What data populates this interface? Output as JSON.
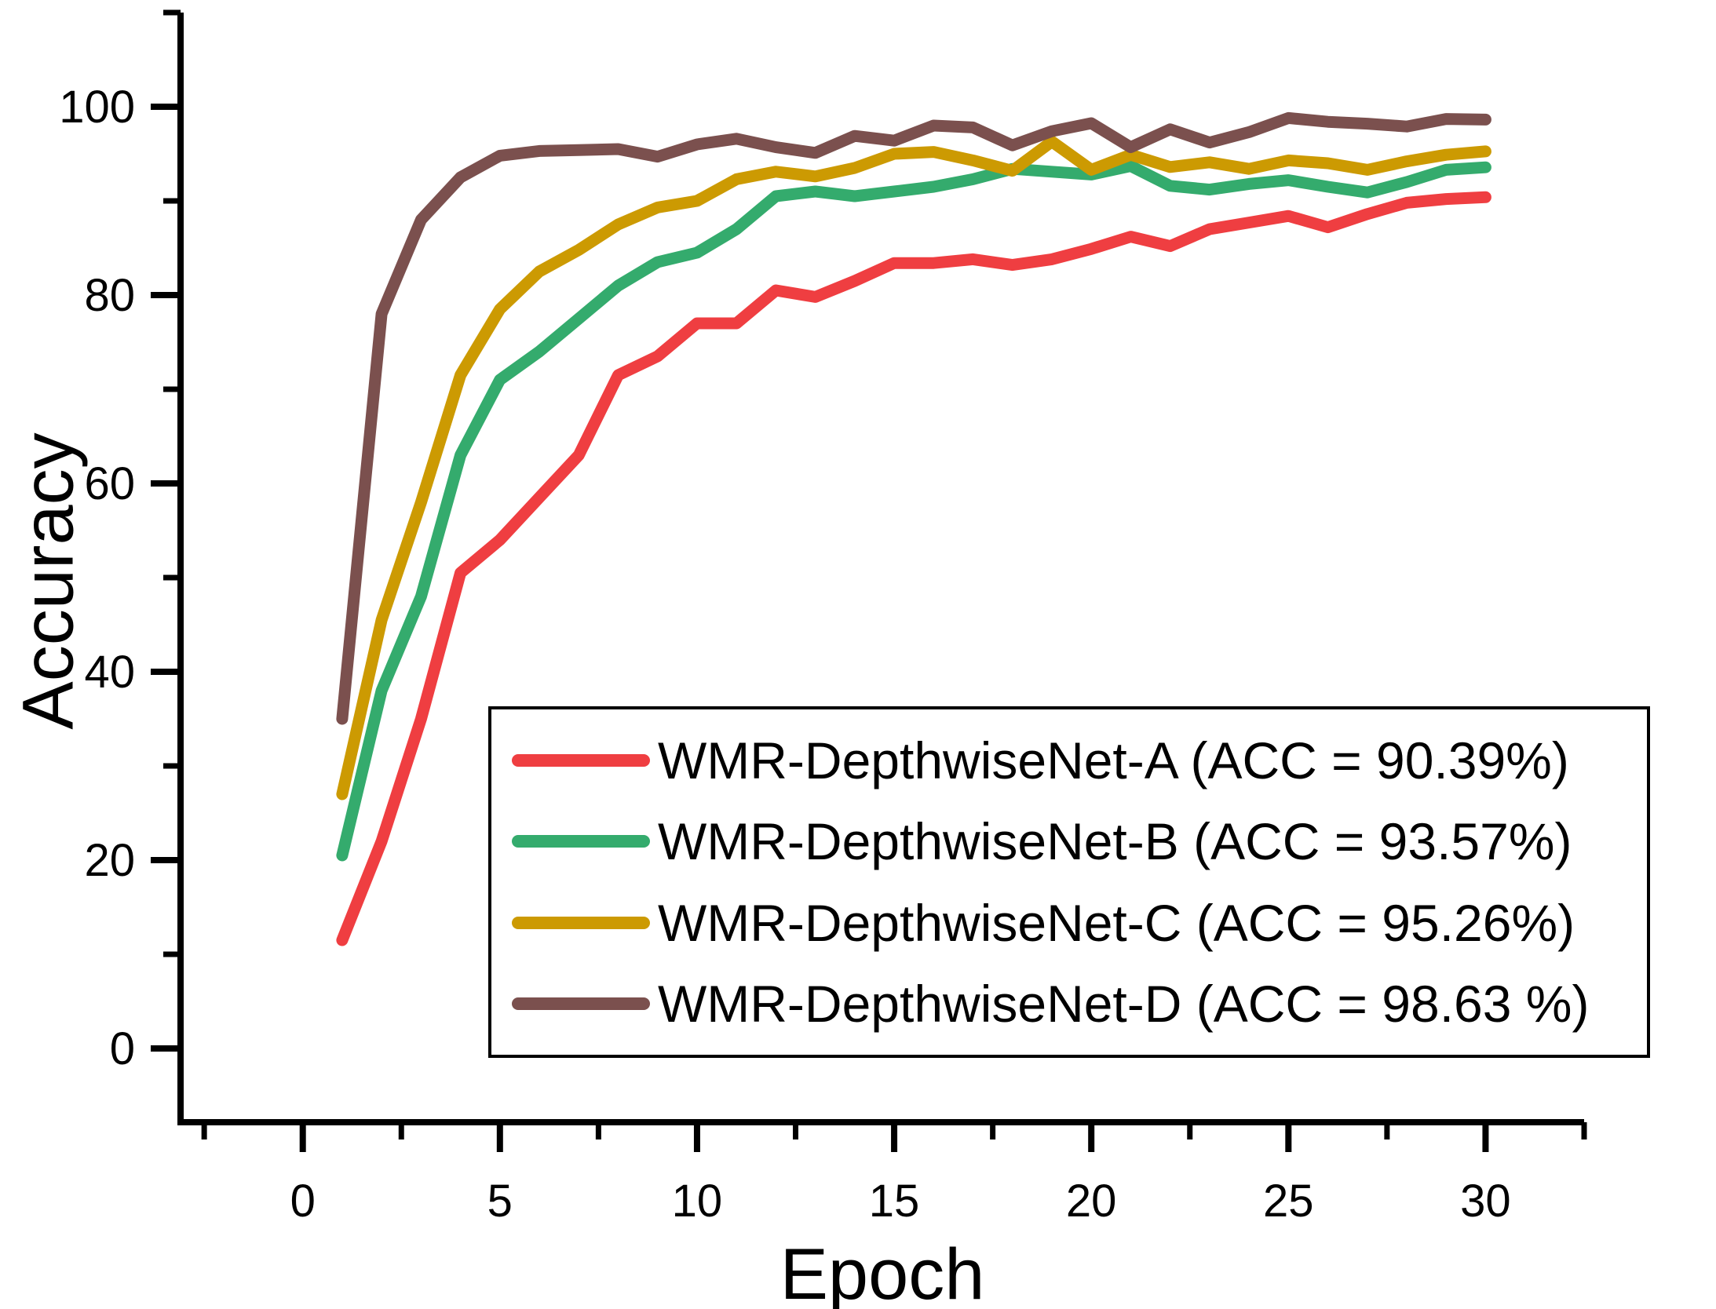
{
  "chart_data": {
    "type": "line",
    "title": "",
    "xlabel": "Epoch",
    "ylabel": "Accuracy",
    "grid": false,
    "legend_position": "inside-lower-right",
    "axes": {
      "x": {
        "label": "Epoch",
        "min": -3.1,
        "max": 32.5,
        "major_ticks": [
          0,
          5,
          10,
          15,
          20,
          25,
          30
        ],
        "minor_ticks": [
          -2.5,
          2.5,
          7.5,
          12.5,
          17.5,
          22.5,
          27.5,
          32.5
        ]
      },
      "y": {
        "label": "Accuracy",
        "min": -7.83,
        "max": 110,
        "major_ticks": [
          0,
          20,
          40,
          60,
          80,
          100
        ],
        "minor_ticks": [
          10,
          30,
          50,
          70,
          90,
          110
        ]
      }
    },
    "x": [
      1,
      2,
      3,
      4,
      5,
      6,
      7,
      8,
      9,
      10,
      11,
      12,
      13,
      14,
      15,
      16,
      17,
      18,
      19,
      20,
      21,
      22,
      23,
      24,
      25,
      26,
      27,
      28,
      29,
      30
    ],
    "series": [
      {
        "name": "WMR-DepthwiseNet-A",
        "legend_label": "WMR-DepthwiseNet-A (ACC = 90.39%)",
        "final_acc": "90.39%",
        "color": "#EF3E41",
        "values": [
          11.5,
          22,
          35,
          50.5,
          54,
          58.5,
          63,
          71.5,
          73.5,
          77,
          77,
          80.5,
          79.8,
          81.5,
          83.4,
          83.4,
          83.8,
          83.2,
          83.8,
          84.9,
          86.2,
          85.2,
          87.0,
          87.7,
          88.4,
          87.2,
          88.6,
          89.8,
          90.2,
          90.39
        ]
      },
      {
        "name": "WMR-DepthwiseNet-B",
        "legend_label": "WMR-DepthwiseNet-B (ACC = 93.57%)",
        "final_acc": "93.57%",
        "color": "#34AB6D",
        "values": [
          20.5,
          38,
          48,
          63,
          71,
          74,
          77.5,
          81,
          83.5,
          84.5,
          87,
          90.5,
          91,
          90.5,
          91,
          91.5,
          92.3,
          93.4,
          93.1,
          92.8,
          93.7,
          91.6,
          91.2,
          91.8,
          92.2,
          91.5,
          90.9,
          92.0,
          93.3,
          93.57
        ]
      },
      {
        "name": "WMR-DepthwiseNet-C",
        "legend_label": "WMR-DepthwiseNet-C (ACC = 95.26%)",
        "final_acc": "95.26%",
        "color": "#CC9A02",
        "values": [
          27,
          45.5,
          58,
          71.5,
          78.5,
          82.5,
          84.8,
          87.5,
          89.3,
          90.0,
          92.3,
          93.1,
          92.6,
          93.5,
          95.0,
          95.2,
          94.3,
          93.2,
          96.3,
          93.3,
          94.9,
          93.6,
          94.1,
          93.4,
          94.3,
          94.0,
          93.3,
          94.2,
          94.9,
          95.26
        ]
      },
      {
        "name": "WMR-DepthwiseNet-D",
        "legend_label": "WMR-DepthwiseNet-D (ACC = 98.63 %)",
        "final_acc": "98.63 %",
        "color": "#7B504E",
        "values": [
          35,
          78,
          88,
          92.5,
          94.8,
          95.3,
          95.4,
          95.5,
          94.7,
          96.0,
          96.6,
          95.7,
          95.1,
          96.9,
          96.4,
          98.0,
          97.8,
          95.9,
          97.4,
          98.25,
          95.7,
          97.6,
          96.2,
          97.3,
          98.8,
          98.4,
          98.2,
          97.9,
          98.7,
          98.63
        ]
      }
    ]
  }
}
